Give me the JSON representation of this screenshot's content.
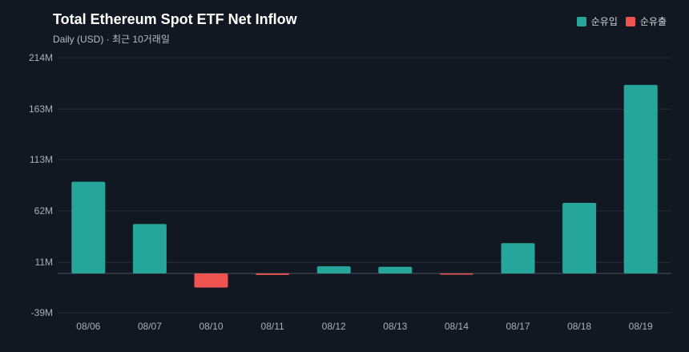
{
  "header": {
    "title": "Total Ethereum Spot ETF Net Inflow",
    "subtitle": "Daily (USD) · 최근 10거래일"
  },
  "legend": [
    {
      "label": "순유입",
      "color": "#26a69a"
    },
    {
      "label": "순유출",
      "color": "#ef5350"
    }
  ],
  "chart_data": {
    "type": "bar",
    "title": "Total Ethereum Spot ETF Net Inflow",
    "subtitle": "Daily (USD) · 최근 10거래일",
    "categories": [
      "08/06",
      "08/07",
      "08/10",
      "08/11",
      "08/12",
      "08/13",
      "08/14",
      "08/17",
      "08/18",
      "08/19"
    ],
    "values": [
      91,
      49,
      -14,
      -1.5,
      7,
      6.5,
      -1,
      30,
      70,
      187
    ],
    "unit": "M",
    "y_ticks": [
      "214M",
      "163M",
      "113M",
      "62M",
      "11M",
      "-39M"
    ],
    "y_tick_values": [
      214,
      163,
      113,
      62,
      11,
      -39
    ],
    "ylim": [
      -39,
      214
    ],
    "grid": true,
    "legend_position": "top-right",
    "positive_color": "#26a69a",
    "negative_color": "#ef5350"
  }
}
